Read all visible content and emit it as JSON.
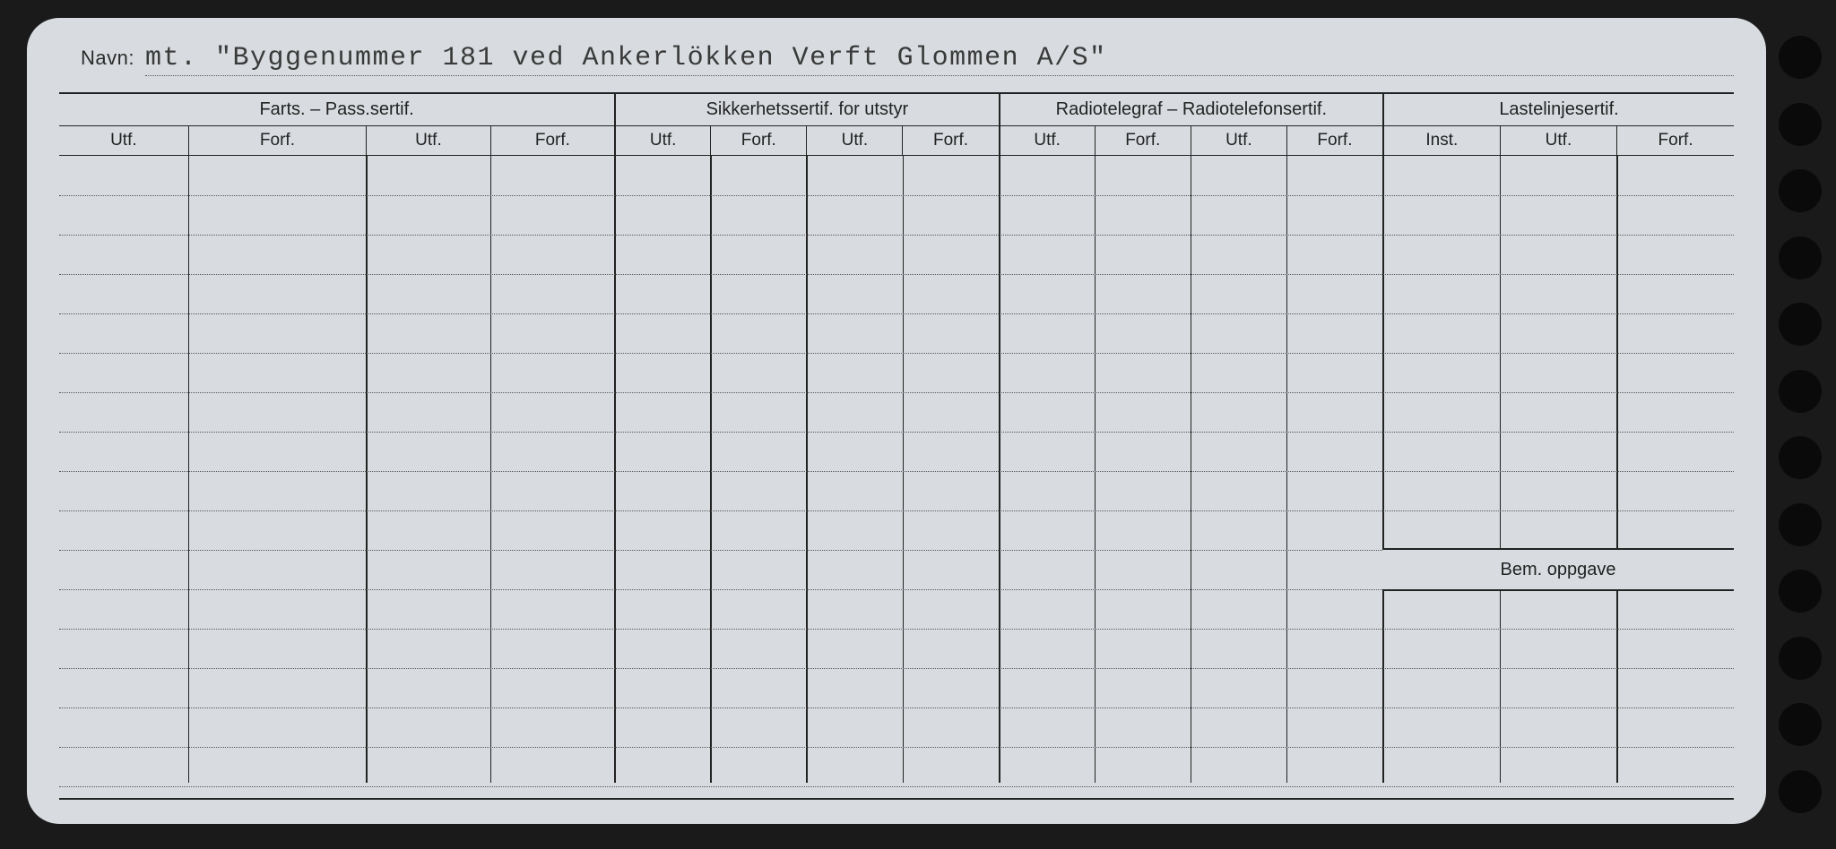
{
  "navn_label": "Navn:",
  "navn_value": "mt. \"Byggenummer 181 ved Ankerlökken Verft Glommen A/S\"",
  "bem_label": "Bem. oppgave",
  "column_groups": [
    {
      "label": "Farts. – Pass.sertif.",
      "subs": [
        "Utf.",
        "Forf.",
        "Utf.",
        "Forf."
      ],
      "widths": [
        110,
        152,
        106,
        106
      ],
      "thick_left": false
    },
    {
      "label": "Sikkerhetssertif. for utstyr",
      "subs": [
        "Utf.",
        "Forf.",
        "Utf.",
        "Forf."
      ],
      "widths": [
        82,
        82,
        82,
        82
      ],
      "thick_left": true
    },
    {
      "label": "Radiotelegraf – Radiotelefonsertif.",
      "subs": [
        "Utf.",
        "Forf.",
        "Utf.",
        "Forf."
      ],
      "widths": [
        82,
        82,
        82,
        82
      ],
      "thick_left": true
    },
    {
      "label": "Lastelinjesertif.",
      "subs": [
        "Inst.",
        "Utf.",
        "Forf."
      ],
      "widths": [
        100,
        100,
        100
      ],
      "thick_left": true
    }
  ],
  "total_width": 1868,
  "body_rows_count": 16,
  "row_spacing": 44,
  "bem_row_index": 10,
  "colors": {
    "card_bg": "#d8dce0",
    "page_bg": "#1a1a1a",
    "line": "#222222",
    "dotted": "#555555",
    "text": "#2a2a2a"
  },
  "hole_count": 12
}
